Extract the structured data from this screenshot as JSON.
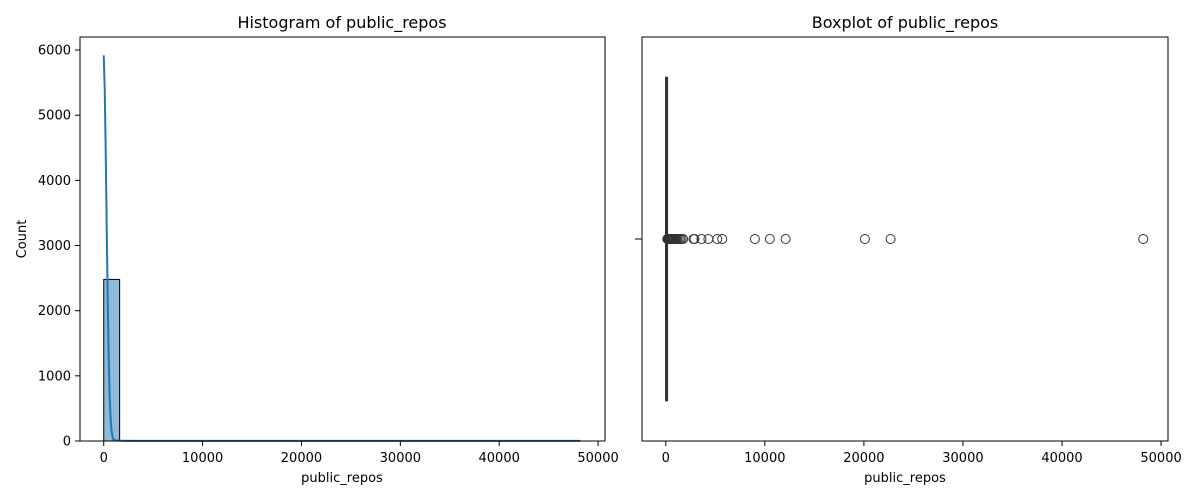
{
  "chart_data": [
    {
      "type": "bar",
      "title": "Histogram of public_repos",
      "xlabel": "public_repos",
      "ylabel": "Count",
      "xlim": [
        -2400,
        50700
      ],
      "ylim": [
        0,
        6200
      ],
      "xticks": [
        0,
        10000,
        20000,
        30000,
        40000,
        50000
      ],
      "xtick_labels": [
        "0",
        "10000",
        "20000",
        "30000",
        "40000",
        "50000"
      ],
      "yticks": [
        0,
        1000,
        2000,
        3000,
        4000,
        5000,
        6000
      ],
      "ytick_labels": [
        "0",
        "1000",
        "2000",
        "3000",
        "4000",
        "5000",
        "6000"
      ],
      "bin_width": 1608,
      "bins": [
        {
          "x0": 0,
          "x1": 1608,
          "count": 2480
        },
        {
          "x0": 1608,
          "x1": 3216,
          "count": 8
        },
        {
          "x0": 3216,
          "x1": 4824,
          "count": 5
        },
        {
          "x0": 4824,
          "x1": 6432,
          "count": 3
        },
        {
          "x0": 8040,
          "x1": 9648,
          "count": 1
        },
        {
          "x0": 9648,
          "x1": 11256,
          "count": 1
        },
        {
          "x0": 11256,
          "x1": 12864,
          "count": 1
        },
        {
          "x0": 19296,
          "x1": 20904,
          "count": 1
        },
        {
          "x0": 22512,
          "x1": 24120,
          "count": 1
        },
        {
          "x0": 46632,
          "x1": 48240,
          "count": 1
        }
      ],
      "bar_color": "#1f77b4",
      "kde": {
        "x": [
          0,
          100,
          200,
          300,
          400,
          500,
          600,
          700,
          800,
          900,
          1000,
          1200,
          1500,
          2000,
          3000,
          5000,
          10000,
          20000,
          30000,
          40000,
          48200
        ],
        "y": [
          5920,
          5400,
          4450,
          3300,
          2200,
          1300,
          680,
          320,
          140,
          60,
          25,
          10,
          5,
          3,
          2,
          1,
          1,
          1,
          1,
          1,
          1
        ]
      }
    },
    {
      "type": "box",
      "title": "Boxplot of public_repos",
      "xlabel": "public_repos",
      "xlim": [
        -2400,
        50700
      ],
      "xticks": [
        0,
        10000,
        20000,
        30000,
        40000,
        50000
      ],
      "xtick_labels": [
        "0",
        "10000",
        "20000",
        "30000",
        "40000",
        "50000"
      ],
      "y_range": [
        -0.5,
        0.5
      ],
      "box": {
        "q1": 5,
        "median": 20,
        "q3": 60,
        "whisker_low": 0,
        "whisker_high": 140
      },
      "outliers": [
        150,
        180,
        210,
        250,
        300,
        350,
        400,
        450,
        500,
        560,
        620,
        700,
        780,
        850,
        950,
        1050,
        1150,
        1300,
        1450,
        1600,
        1750,
        2800,
        2900,
        3600,
        4300,
        5200,
        5700,
        9000,
        10500,
        12100,
        20100,
        22700,
        48200
      ],
      "color": "#333333"
    }
  ]
}
